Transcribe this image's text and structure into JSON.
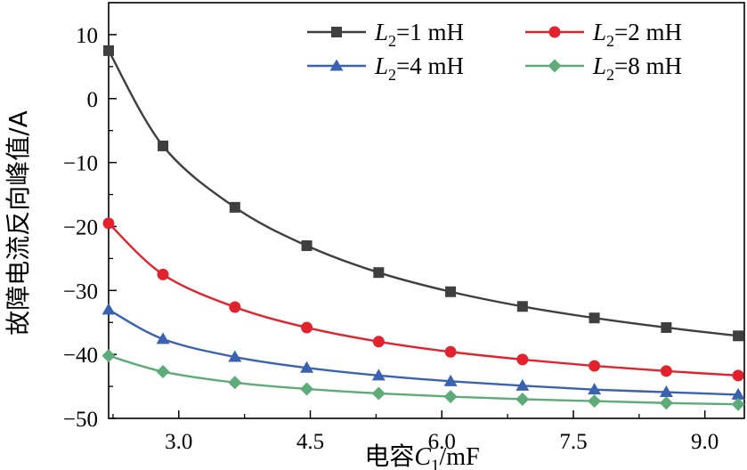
{
  "chart_data": {
    "type": "line",
    "xlabel_parts": {
      "prefix": "电容",
      "var": "C",
      "sub": "1",
      "unit": "/mF"
    },
    "ylabel": "故障电流反向峰值/A",
    "xlim": [
      2.2,
      9.45
    ],
    "ylim": [
      -50,
      15
    ],
    "xticks": [
      3.0,
      4.5,
      6.0,
      7.5,
      9.0
    ],
    "xtick_labels": [
      "3.0",
      "4.5",
      "6.0",
      "7.5",
      "9.0"
    ],
    "yticks": [
      10,
      0,
      -10,
      -20,
      -30,
      -40,
      -50
    ],
    "ytick_labels": [
      "10",
      "0",
      "−10",
      "−20",
      "−30",
      "−40",
      "−50"
    ],
    "legend_position": "top-right",
    "grid": false,
    "x": [
      2.2,
      2.82,
      3.64,
      4.46,
      5.28,
      6.1,
      6.92,
      7.74,
      8.56,
      9.38
    ],
    "series": [
      {
        "name": "L2=1 mH",
        "label_var": "L",
        "label_sub": "2",
        "label_rest": "=1 mH",
        "color": "#3f3f3f",
        "marker": "square",
        "values": [
          7.5,
          -7.4,
          -17.0,
          -23.0,
          -27.2,
          -30.2,
          -32.5,
          -34.3,
          -35.8,
          -37.1
        ]
      },
      {
        "name": "L2=2 mH",
        "label_var": "L",
        "label_sub": "2",
        "label_rest": "=2 mH",
        "color": "#e2232e",
        "marker": "circle",
        "values": [
          -19.5,
          -27.5,
          -32.6,
          -35.8,
          -38.0,
          -39.6,
          -40.8,
          -41.8,
          -42.6,
          -43.3
        ]
      },
      {
        "name": "L2=4 mH",
        "label_var": "L",
        "label_sub": "2",
        "label_rest": "=4 mH",
        "color": "#3b62b0",
        "marker": "triangle",
        "values": [
          -33.0,
          -37.6,
          -40.4,
          -42.1,
          -43.3,
          -44.2,
          -44.9,
          -45.5,
          -45.9,
          -46.3
        ]
      },
      {
        "name": "L2=8 mH",
        "label_var": "L",
        "label_sub": "2",
        "label_rest": "=8 mH",
        "color": "#5cab78",
        "marker": "diamond",
        "values": [
          -40.2,
          -42.7,
          -44.4,
          -45.4,
          -46.1,
          -46.6,
          -47.0,
          -47.3,
          -47.6,
          -47.8
        ]
      }
    ]
  }
}
